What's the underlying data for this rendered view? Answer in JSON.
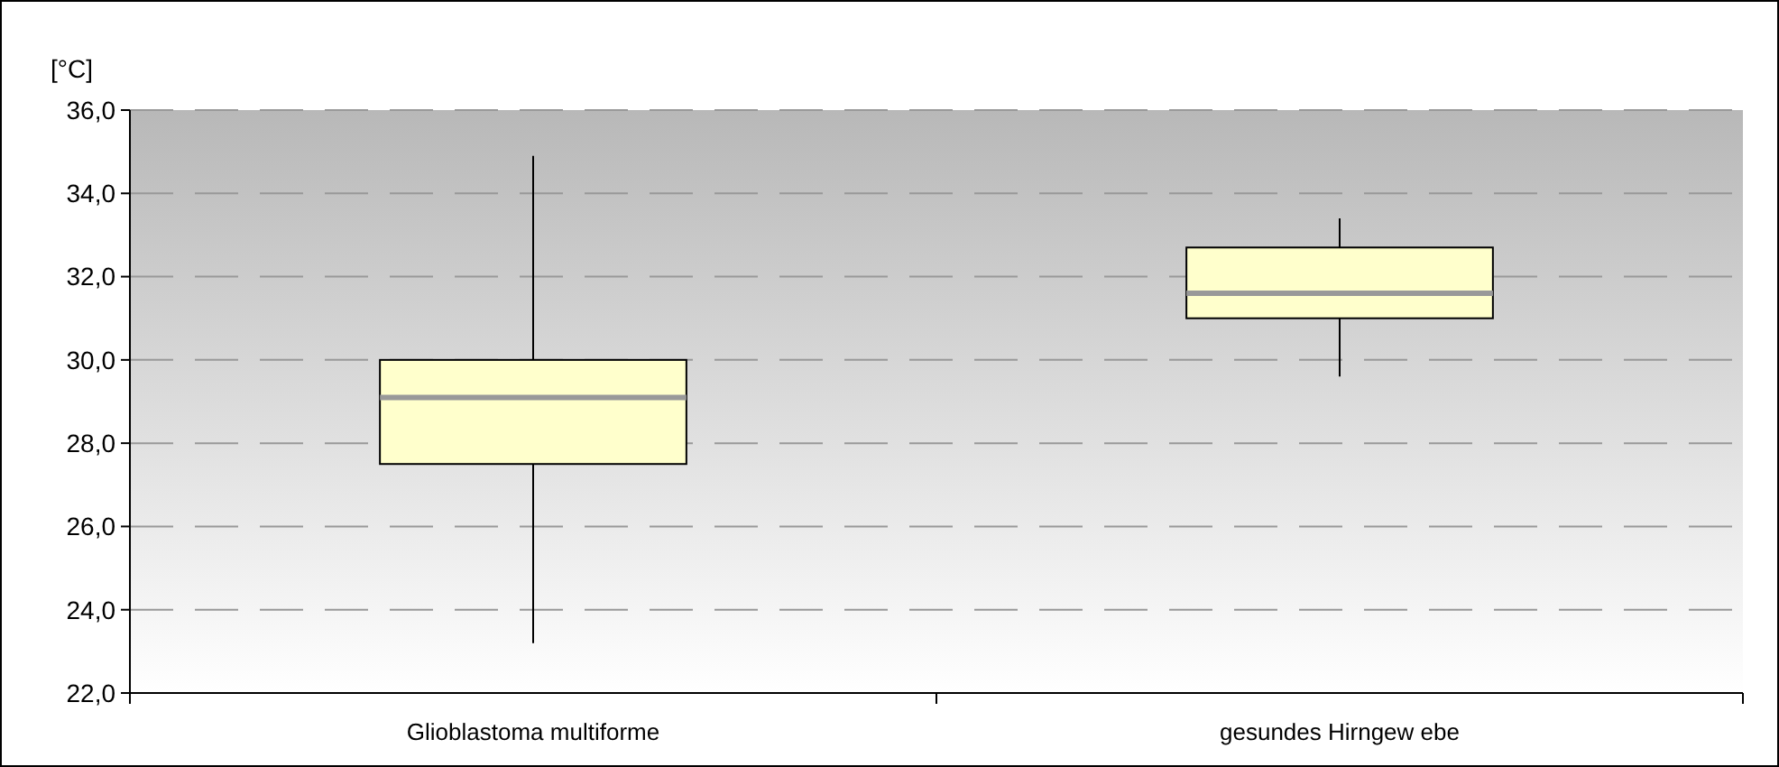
{
  "chart_data": {
    "type": "box",
    "ylabel": "[°C]",
    "categories": [
      "Glioblastoma multiforme",
      "gesundes Hirngew ebe"
    ],
    "boxes": [
      {
        "low": 23.2,
        "q1": 27.5,
        "median": 29.1,
        "q3": 30.0,
        "high": 34.9
      },
      {
        "low": 29.6,
        "q1": 31.0,
        "median": 31.6,
        "q3": 32.7,
        "high": 33.4
      }
    ],
    "color": "#ffffcc",
    "ylim": [
      22,
      36
    ],
    "yticks": [
      {
        "value": 22,
        "label": "22,0"
      },
      {
        "value": 24,
        "label": "24,0"
      },
      {
        "value": 26,
        "label": "26,0"
      },
      {
        "value": 28,
        "label": "28,0"
      },
      {
        "value": 30,
        "label": "30,0"
      },
      {
        "value": 32,
        "label": "32,0"
      },
      {
        "value": 34,
        "label": "34,0"
      },
      {
        "value": 36,
        "label": "36,0"
      }
    ],
    "grid": "y"
  }
}
